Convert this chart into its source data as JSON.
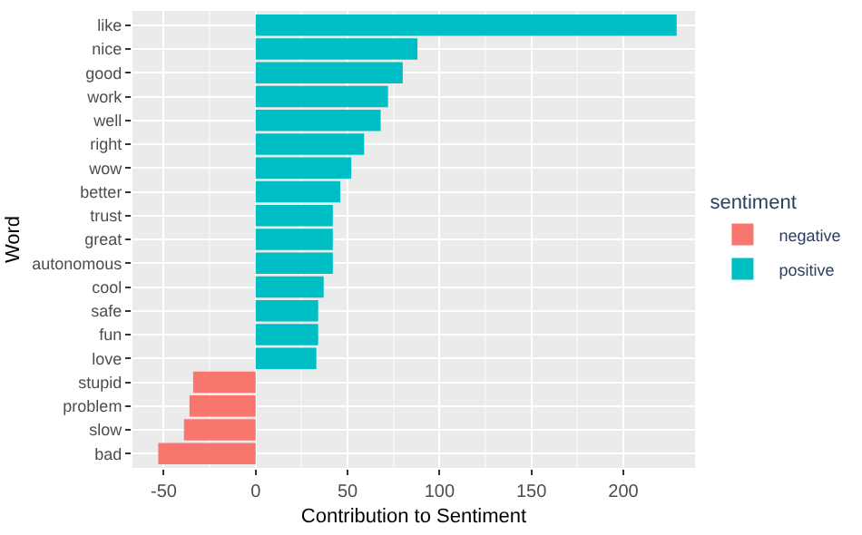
{
  "chart_data": {
    "type": "bar",
    "orientation": "horizontal",
    "xlabel": "Contribution to Sentiment",
    "ylabel": "Word",
    "legend_title": "sentiment",
    "categories": [
      "like",
      "nice",
      "good",
      "work",
      "well",
      "right",
      "wow",
      "better",
      "trust",
      "great",
      "autonomous",
      "cool",
      "safe",
      "fun",
      "love",
      "stupid",
      "problem",
      "slow",
      "bad"
    ],
    "series": [
      {
        "name": "negative",
        "color": "#f8766d",
        "values": [
          null,
          null,
          null,
          null,
          null,
          null,
          null,
          null,
          null,
          null,
          null,
          null,
          null,
          null,
          null,
          -34,
          -36,
          -39,
          -53
        ]
      },
      {
        "name": "positive",
        "color": "#00bfc4",
        "values": [
          229,
          88,
          80,
          72,
          68,
          59,
          52,
          46,
          42,
          42,
          42,
          37,
          34,
          34,
          33,
          null,
          null,
          null,
          null
        ]
      }
    ],
    "xlim": [
      -67,
      239
    ],
    "xticks": [
      -50,
      0,
      50,
      100,
      150,
      200
    ],
    "grid": true,
    "legend": "right"
  }
}
